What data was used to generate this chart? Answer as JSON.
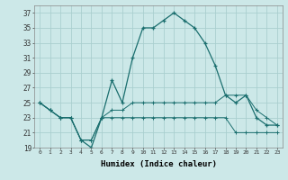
{
  "xlabel": "Humidex (Indice chaleur)",
  "background_color": "#cce8e8",
  "line_color": "#1a6e6e",
  "grid_color": "#aacfcf",
  "x_values": [
    0,
    1,
    2,
    3,
    4,
    5,
    6,
    7,
    8,
    9,
    10,
    11,
    12,
    13,
    14,
    15,
    16,
    17,
    18,
    19,
    20,
    21,
    22,
    23
  ],
  "series1": [
    25,
    24,
    23,
    23,
    20,
    19,
    23,
    28,
    25,
    31,
    35,
    35,
    36,
    37,
    36,
    35,
    33,
    30,
    26,
    25,
    26,
    23,
    22,
    22
  ],
  "series2": [
    25,
    24,
    23,
    23,
    20,
    20,
    23,
    24,
    24,
    25,
    25,
    25,
    25,
    25,
    25,
    25,
    25,
    25,
    26,
    26,
    26,
    24,
    23,
    22
  ],
  "series3": [
    25,
    24,
    23,
    23,
    20,
    20,
    23,
    23,
    23,
    23,
    23,
    23,
    23,
    23,
    23,
    23,
    23,
    23,
    23,
    21,
    21,
    21,
    21,
    21
  ],
  "ylim": [
    19,
    38
  ],
  "yticks": [
    19,
    21,
    23,
    25,
    27,
    29,
    31,
    33,
    35,
    37
  ],
  "xlim": [
    -0.5,
    23.5
  ]
}
